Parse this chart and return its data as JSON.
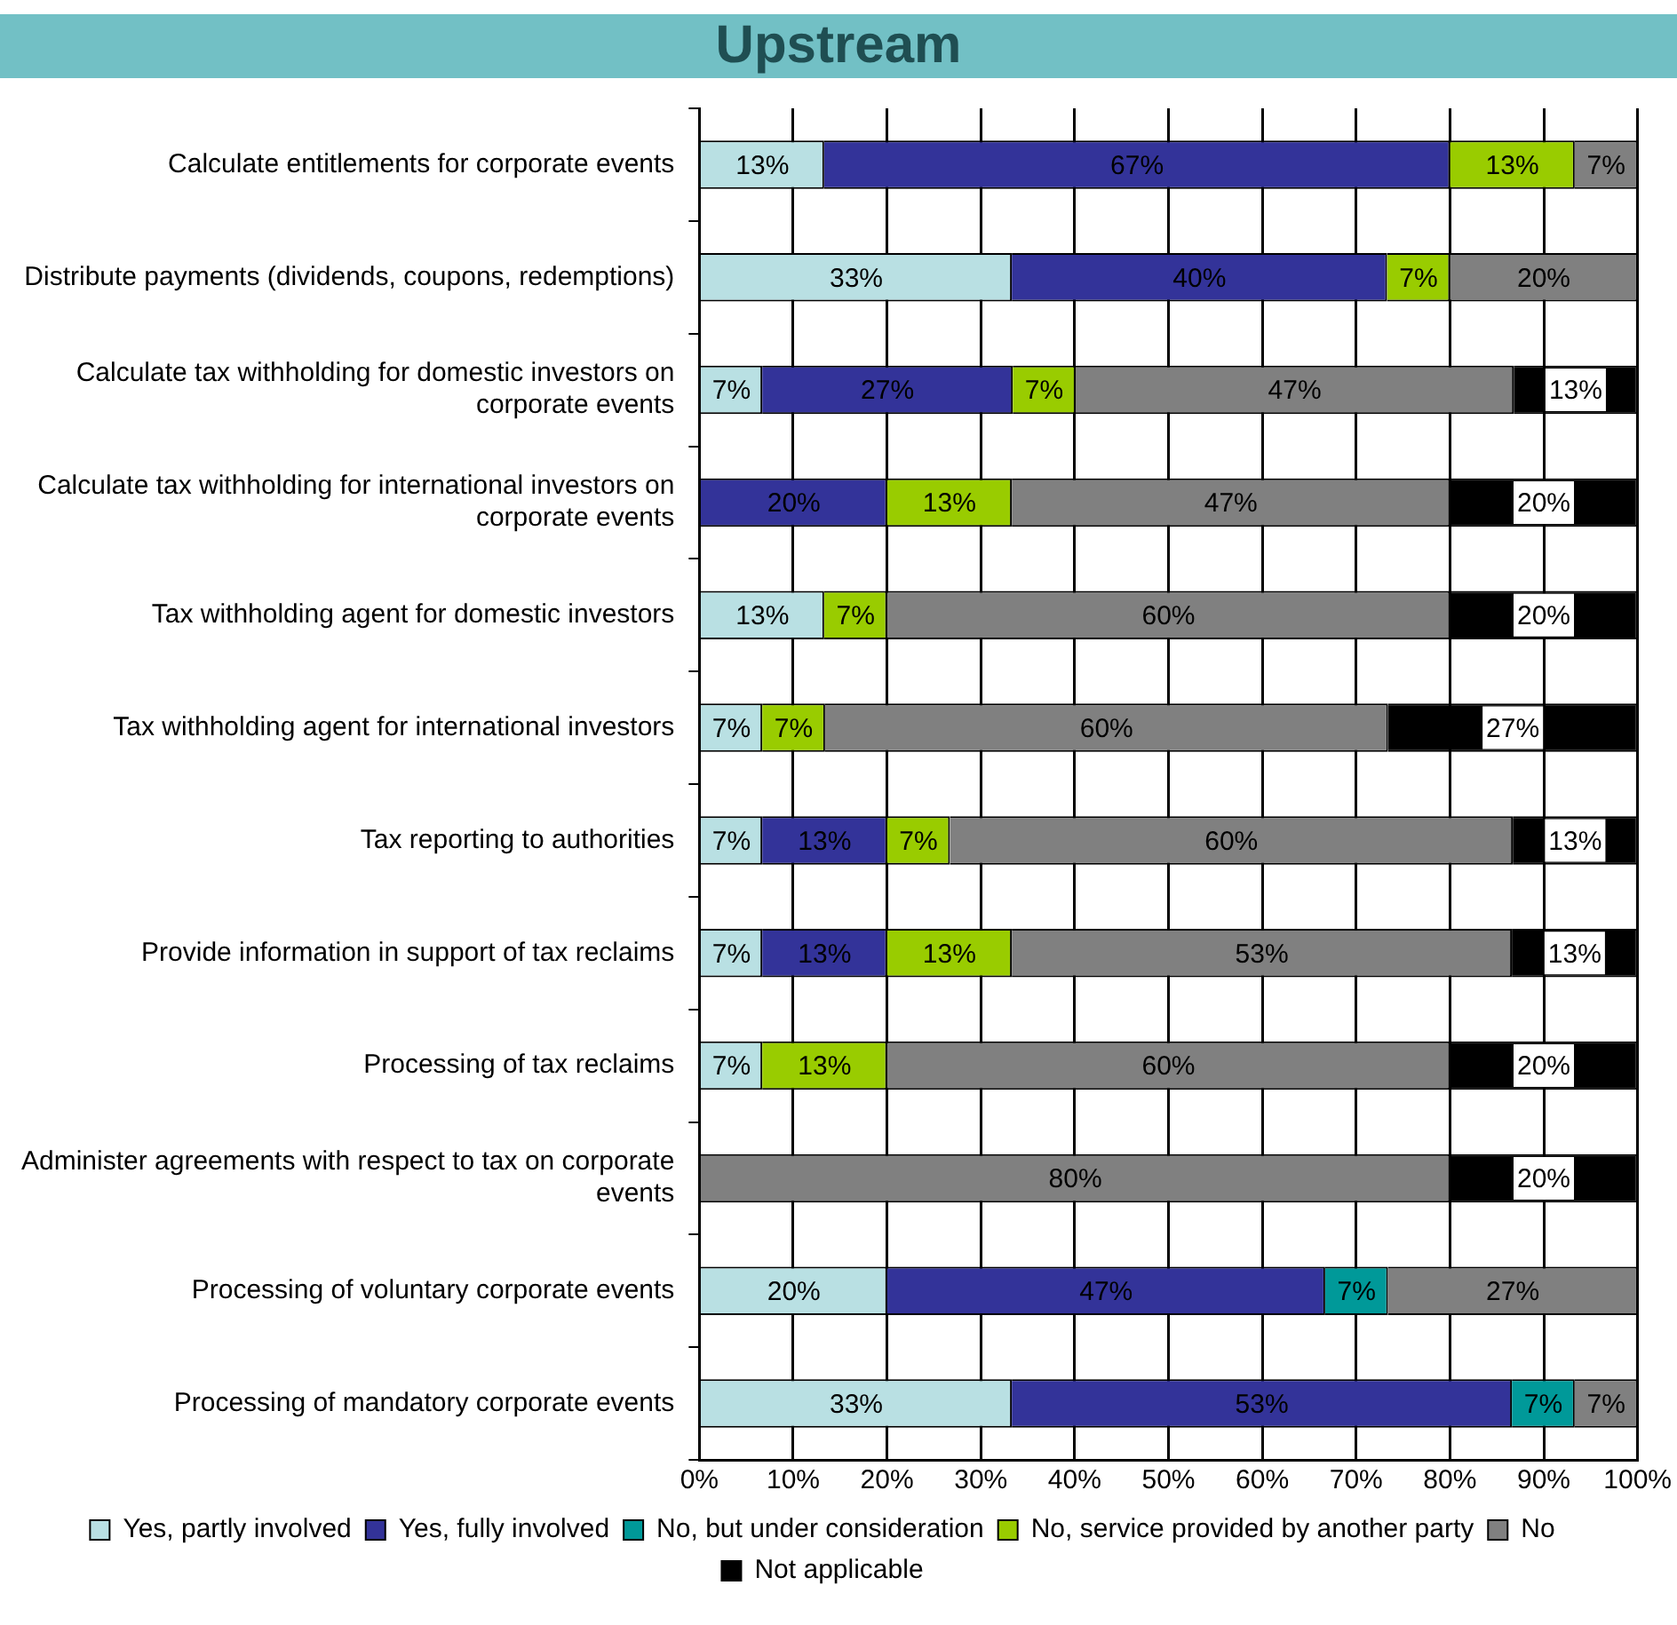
{
  "chart_data": {
    "type": "bar",
    "orientation": "horizontal",
    "stacked": true,
    "title": "Upstream",
    "categories": [
      "Calculate entitlements for corporate events",
      "Distribute payments (dividends, coupons, redemptions)",
      "Calculate tax withholding for domestic investors on corporate events",
      "Calculate tax withholding for international investors on corporate events",
      "Tax withholding agent for domestic investors",
      "Tax withholding agent for international investors",
      "Tax reporting to authorities",
      "Provide information in support of tax reclaims",
      "Processing of tax reclaims",
      "Administer agreements with respect to tax on corporate events",
      "Processing of voluntary corporate events",
      "Processing of mandatory corporate events"
    ],
    "series": [
      {
        "name": "Yes, partly involved",
        "color": "#b9e0e3",
        "values": [
          13.3,
          33.3,
          6.7,
          null,
          13.3,
          6.7,
          6.7,
          6.7,
          6.7,
          null,
          20,
          33.3
        ],
        "value_labels": [
          "13%",
          "33%",
          "7%",
          null,
          "13%",
          "7%",
          "7%",
          "7%",
          "7%",
          null,
          "20%",
          "33%"
        ]
      },
      {
        "name": "Yes, fully involved",
        "color": "#333399",
        "values": [
          66.7,
          40,
          26.7,
          20,
          null,
          null,
          13.3,
          13.3,
          null,
          null,
          46.7,
          53.3
        ],
        "value_labels": [
          "67%",
          "40%",
          "27%",
          "20%",
          null,
          null,
          "13%",
          "13%",
          null,
          null,
          "47%",
          "53%"
        ]
      },
      {
        "name": "No, but under consideration",
        "color": "#009999",
        "values": [
          null,
          null,
          null,
          null,
          null,
          null,
          null,
          null,
          null,
          null,
          6.7,
          6.7
        ],
        "value_labels": [
          null,
          null,
          null,
          null,
          null,
          null,
          null,
          null,
          null,
          null,
          "7%",
          "7%"
        ]
      },
      {
        "name": "No, service provided by another party",
        "color": "#99cc00",
        "values": [
          13.3,
          6.7,
          6.7,
          13.3,
          6.7,
          6.7,
          6.7,
          13.3,
          13.3,
          null,
          null,
          null
        ],
        "value_labels": [
          "13%",
          "7%",
          "7%",
          "13%",
          "7%",
          "7%",
          "7%",
          "13%",
          "13%",
          null,
          null,
          null
        ]
      },
      {
        "name": "No",
        "color": "#808080",
        "values": [
          6.7,
          20,
          46.7,
          46.7,
          60,
          60,
          60,
          53.3,
          60,
          80,
          26.6,
          6.7
        ],
        "value_labels": [
          "7%",
          "20%",
          "47%",
          "47%",
          "60%",
          "60%",
          "60%",
          "53%",
          "60%",
          "80%",
          "27%",
          "7%"
        ]
      },
      {
        "name": "Not applicable",
        "color": "#000000",
        "values": [
          null,
          null,
          13.2,
          20,
          20,
          26.6,
          13.3,
          13.4,
          20,
          20,
          null,
          null
        ],
        "value_labels": [
          null,
          null,
          "13%",
          "20%",
          "20%",
          "27%",
          "13%",
          "13%",
          "20%",
          "20%",
          null,
          null
        ]
      }
    ],
    "xlim": [
      0,
      100
    ],
    "xticks": [
      {
        "value": 0,
        "label": "0%"
      },
      {
        "value": 10,
        "label": "10%"
      },
      {
        "value": 20,
        "label": "20%"
      },
      {
        "value": 30,
        "label": "30%"
      },
      {
        "value": 40,
        "label": "40%"
      },
      {
        "value": 50,
        "label": "50%"
      },
      {
        "value": 60,
        "label": "60%"
      },
      {
        "value": 70,
        "label": "70%"
      },
      {
        "value": 80,
        "label": "80%"
      },
      {
        "value": 90,
        "label": "90%"
      },
      {
        "value": 100,
        "label": "100%"
      }
    ],
    "grid": "x",
    "legend": "bottom"
  }
}
